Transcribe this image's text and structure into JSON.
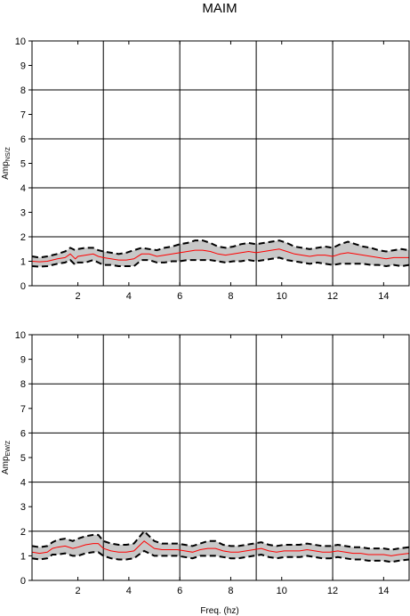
{
  "figure_title": "MAIM",
  "colors": {
    "band": "#c8c8c8",
    "mean_line": "#ff0000",
    "bound_line": "#000000",
    "grid": "#000000",
    "background": "#ffffff"
  },
  "chart_data": [
    {
      "type": "line",
      "id": "top",
      "title": "",
      "xlabel": "",
      "ylabel": {
        "main": "Amp",
        "sub": "NS/Z"
      },
      "xlim": [
        0.2,
        15
      ],
      "ylim": [
        0,
        10
      ],
      "xticks": [
        2,
        4,
        6,
        8,
        10,
        12,
        14
      ],
      "yticks": [
        0,
        1,
        2,
        3,
        4,
        5,
        6,
        7,
        8,
        9,
        10
      ],
      "grid": {
        "x": [
          3,
          6,
          9,
          12
        ],
        "y": [
          2,
          4,
          6,
          8
        ]
      },
      "legend": "none",
      "x": [
        0.2,
        0.5,
        0.8,
        1.0,
        1.2,
        1.5,
        1.7,
        1.9,
        2.0,
        2.3,
        2.6,
        2.8,
        3.0,
        3.3,
        3.6,
        3.9,
        4.2,
        4.5,
        4.8,
        5.1,
        5.4,
        5.7,
        6.0,
        6.3,
        6.6,
        6.9,
        7.2,
        7.5,
        7.8,
        8.1,
        8.4,
        8.7,
        9.0,
        9.3,
        9.6,
        9.9,
        10.2,
        10.5,
        10.8,
        11.1,
        11.4,
        11.7,
        12.0,
        12.3,
        12.6,
        12.9,
        13.2,
        13.5,
        13.8,
        14.1,
        14.4,
        14.7,
        15.0
      ],
      "series": [
        {
          "role": "mean",
          "values": [
            1.0,
            0.98,
            1.0,
            1.05,
            1.1,
            1.15,
            1.3,
            1.1,
            1.2,
            1.25,
            1.3,
            1.2,
            1.15,
            1.1,
            1.05,
            1.05,
            1.1,
            1.3,
            1.3,
            1.2,
            1.25,
            1.3,
            1.35,
            1.4,
            1.45,
            1.45,
            1.4,
            1.3,
            1.25,
            1.3,
            1.35,
            1.4,
            1.35,
            1.4,
            1.45,
            1.5,
            1.4,
            1.3,
            1.25,
            1.2,
            1.25,
            1.25,
            1.2,
            1.3,
            1.35,
            1.3,
            1.25,
            1.2,
            1.15,
            1.1,
            1.15,
            1.15,
            1.15
          ]
        },
        {
          "role": "upper",
          "values": [
            1.2,
            1.15,
            1.2,
            1.25,
            1.3,
            1.4,
            1.55,
            1.45,
            1.5,
            1.55,
            1.55,
            1.45,
            1.4,
            1.35,
            1.3,
            1.35,
            1.45,
            1.55,
            1.5,
            1.45,
            1.55,
            1.6,
            1.7,
            1.75,
            1.85,
            1.85,
            1.75,
            1.6,
            1.55,
            1.6,
            1.7,
            1.75,
            1.7,
            1.75,
            1.8,
            1.85,
            1.75,
            1.6,
            1.55,
            1.5,
            1.55,
            1.6,
            1.55,
            1.7,
            1.8,
            1.7,
            1.6,
            1.55,
            1.45,
            1.4,
            1.45,
            1.5,
            1.45
          ]
        },
        {
          "role": "lower",
          "values": [
            0.8,
            0.78,
            0.8,
            0.85,
            0.9,
            0.95,
            1.05,
            0.85,
            0.95,
            0.95,
            1.05,
            0.95,
            0.85,
            0.85,
            0.8,
            0.8,
            0.8,
            1.05,
            1.05,
            0.95,
            0.95,
            1.0,
            1.0,
            1.05,
            1.05,
            1.05,
            1.05,
            1.0,
            0.95,
            1.0,
            1.0,
            1.05,
            1.0,
            1.05,
            1.1,
            1.15,
            1.05,
            1.0,
            0.95,
            0.9,
            0.95,
            0.9,
            0.85,
            0.9,
            0.9,
            0.9,
            0.9,
            0.85,
            0.85,
            0.8,
            0.85,
            0.8,
            0.85
          ]
        }
      ]
    },
    {
      "type": "line",
      "id": "bottom",
      "title": "",
      "xlabel": "Freq. (hz)",
      "ylabel": {
        "main": "Amp",
        "sub": "EW/Z"
      },
      "xlim": [
        0.2,
        15
      ],
      "ylim": [
        0,
        10
      ],
      "xticks": [
        2,
        4,
        6,
        8,
        10,
        12,
        14
      ],
      "yticks": [
        0,
        1,
        2,
        3,
        4,
        5,
        6,
        7,
        8,
        9,
        10
      ],
      "grid": {
        "x": [
          3,
          6,
          9,
          12
        ],
        "y": [
          2,
          4,
          6,
          8
        ]
      },
      "legend": "none",
      "x": [
        0.2,
        0.5,
        0.8,
        1.0,
        1.2,
        1.5,
        1.8,
        2.0,
        2.3,
        2.6,
        2.8,
        3.0,
        3.3,
        3.6,
        3.9,
        4.2,
        4.4,
        4.6,
        4.8,
        5.0,
        5.3,
        5.6,
        5.9,
        6.2,
        6.5,
        6.8,
        7.1,
        7.4,
        7.7,
        8.0,
        8.3,
        8.6,
        8.9,
        9.2,
        9.5,
        9.8,
        10.1,
        10.4,
        10.7,
        11.0,
        11.3,
        11.6,
        11.9,
        12.2,
        12.5,
        12.8,
        13.1,
        13.4,
        13.7,
        14.0,
        14.3,
        14.6,
        15.0
      ],
      "series": [
        {
          "role": "mean",
          "values": [
            1.15,
            1.1,
            1.15,
            1.3,
            1.35,
            1.4,
            1.3,
            1.35,
            1.45,
            1.5,
            1.5,
            1.3,
            1.2,
            1.15,
            1.15,
            1.2,
            1.4,
            1.6,
            1.45,
            1.3,
            1.25,
            1.25,
            1.25,
            1.2,
            1.15,
            1.25,
            1.3,
            1.3,
            1.2,
            1.15,
            1.15,
            1.2,
            1.25,
            1.3,
            1.2,
            1.15,
            1.2,
            1.2,
            1.2,
            1.25,
            1.2,
            1.15,
            1.15,
            1.2,
            1.15,
            1.1,
            1.1,
            1.05,
            1.05,
            1.05,
            1.0,
            1.05,
            1.1
          ]
        },
        {
          "role": "upper",
          "values": [
            1.4,
            1.35,
            1.4,
            1.55,
            1.65,
            1.7,
            1.6,
            1.7,
            1.8,
            1.85,
            1.85,
            1.6,
            1.5,
            1.45,
            1.45,
            1.5,
            1.75,
            2.0,
            1.8,
            1.6,
            1.5,
            1.5,
            1.5,
            1.45,
            1.4,
            1.5,
            1.6,
            1.6,
            1.45,
            1.4,
            1.4,
            1.45,
            1.5,
            1.55,
            1.45,
            1.4,
            1.45,
            1.45,
            1.45,
            1.5,
            1.45,
            1.4,
            1.4,
            1.45,
            1.4,
            1.35,
            1.35,
            1.3,
            1.3,
            1.3,
            1.25,
            1.3,
            1.35
          ]
        },
        {
          "role": "lower",
          "values": [
            0.9,
            0.85,
            0.9,
            1.05,
            1.05,
            1.1,
            1.0,
            1.0,
            1.1,
            1.15,
            1.15,
            1.0,
            0.9,
            0.85,
            0.85,
            0.9,
            1.05,
            1.2,
            1.1,
            1.0,
            1.0,
            1.0,
            1.0,
            0.95,
            0.9,
            1.0,
            1.0,
            1.0,
            0.95,
            0.9,
            0.9,
            0.95,
            1.0,
            1.05,
            0.95,
            0.9,
            0.95,
            0.95,
            0.95,
            1.0,
            0.95,
            0.9,
            0.9,
            0.95,
            0.9,
            0.85,
            0.85,
            0.8,
            0.8,
            0.8,
            0.75,
            0.8,
            0.85
          ]
        }
      ]
    }
  ]
}
